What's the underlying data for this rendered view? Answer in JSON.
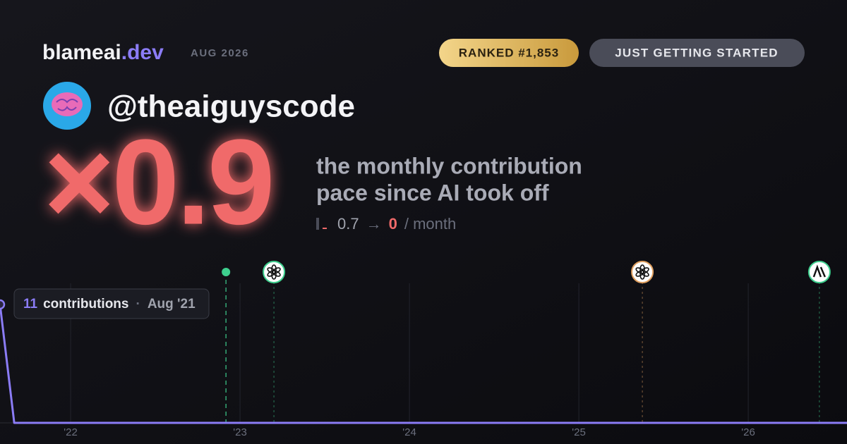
{
  "brand": {
    "name": "blameai",
    "tld": ".dev",
    "period": "AUG 2026"
  },
  "badges": {
    "rank": "RANKED #1,853",
    "status": "JUST GETTING STARTED"
  },
  "profile": {
    "handle": "@theaiguyscode"
  },
  "hero": {
    "multiplier": "×0.9",
    "line1": "the monthly contribution",
    "line2": "pace since AI took off",
    "from": "0.7",
    "arrow": "→",
    "to": "0",
    "unit": "/ month"
  },
  "chart_data": {
    "type": "line",
    "x": [
      2021.583,
      2021.667,
      2026.583
    ],
    "values": [
      11,
      0,
      0
    ],
    "color": "#8b7cf6",
    "xlim": [
      2021.583,
      2026.583
    ],
    "ylim": [
      0,
      11
    ],
    "xticks": [
      {
        "value": 2022,
        "label": "'22"
      },
      {
        "value": 2023,
        "label": "'23"
      },
      {
        "value": 2024,
        "label": "'24"
      },
      {
        "value": 2025,
        "label": "'25"
      },
      {
        "value": 2026,
        "label": "'26"
      }
    ],
    "grid": true,
    "tooltip": {
      "unit": "contributions",
      "sep": "·",
      "date": "Aug '21"
    },
    "events": [
      {
        "x": 2022.917,
        "mark": "dot",
        "color": "#3ecf8e"
      },
      {
        "x": 2023.2,
        "mark": "openai",
        "color": "#3ecf8e"
      },
      {
        "x": 2025.375,
        "mark": "openai",
        "color": "#e0a060"
      },
      {
        "x": 2026.42,
        "mark": "anthropic",
        "color": "#3ecf8e"
      }
    ]
  }
}
